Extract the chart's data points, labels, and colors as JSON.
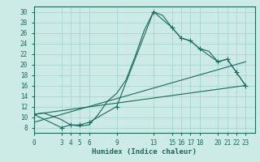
{
  "xlabel": "Humidex (Indice chaleur)",
  "background_color": "#cceae6",
  "grid_color": "#aad4d0",
  "line_color": "#1a6b5a",
  "xlim": [
    0,
    24
  ],
  "ylim": [
    7,
    31
  ],
  "xticks": [
    0,
    3,
    4,
    5,
    6,
    9,
    13,
    15,
    16,
    17,
    18,
    20,
    21,
    22,
    23
  ],
  "yticks": [
    8,
    10,
    12,
    14,
    16,
    18,
    20,
    22,
    24,
    26,
    28,
    30
  ],
  "series1_x": [
    0,
    1,
    2,
    3,
    4,
    5,
    6,
    7,
    8,
    9,
    10,
    11,
    12,
    13,
    14,
    15,
    16,
    17,
    18,
    19,
    20,
    21,
    22,
    23
  ],
  "series1_y": [
    10.5,
    10.8,
    10.2,
    9.5,
    8.5,
    8.3,
    8.5,
    10.5,
    13.0,
    14.5,
    17.0,
    21.5,
    26.5,
    30.0,
    29.3,
    27.0,
    25.0,
    24.5,
    23.0,
    22.5,
    20.5,
    21.0,
    18.5,
    16.0
  ],
  "series2_x": [
    0,
    3,
    4,
    5,
    6,
    9,
    13,
    15,
    16,
    17,
    18,
    20,
    21,
    22,
    23
  ],
  "series2_y": [
    10.5,
    8.0,
    8.5,
    8.5,
    9.0,
    12.0,
    30.0,
    27.0,
    25.0,
    24.5,
    23.0,
    20.5,
    21.0,
    18.5,
    16.0
  ],
  "series3_x": [
    0,
    23
  ],
  "series3_y": [
    10.5,
    16.0
  ],
  "series4_x": [
    0,
    23
  ],
  "series4_y": [
    9.0,
    20.5
  ],
  "marker": "+",
  "markersize": 4,
  "linewidth": 0.8
}
